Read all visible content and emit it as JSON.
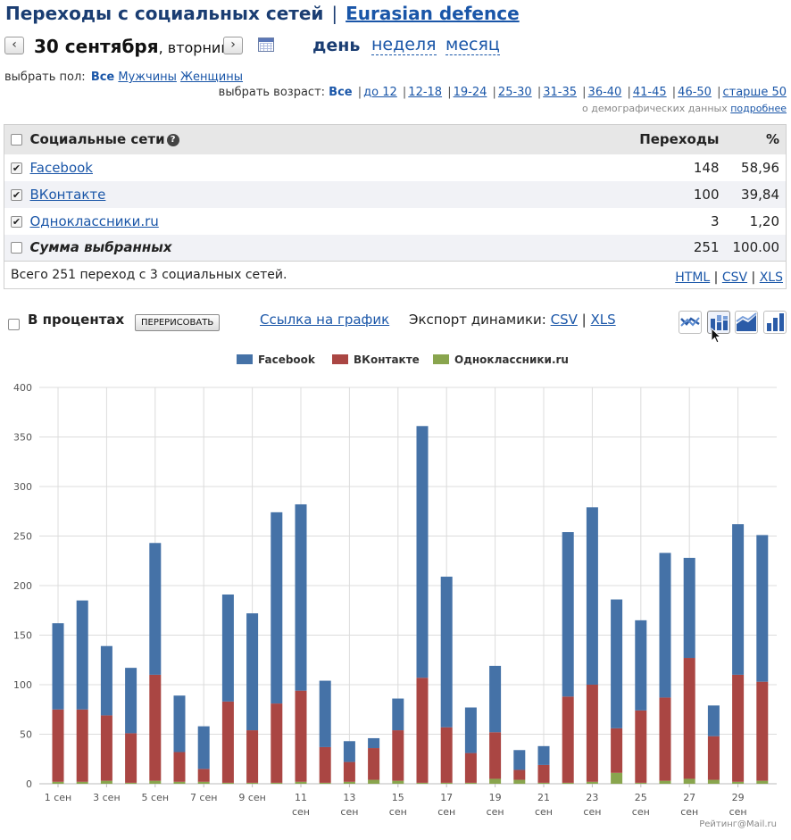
{
  "header": {
    "title": "Переходы с социальных сетей",
    "separator": "|",
    "site": "Eurasian defence"
  },
  "date_nav": {
    "prev": "‹",
    "next": "›",
    "date": "30 сентября",
    "weekday": ", вторник",
    "calendar_icon": "calendar-icon",
    "periods": {
      "day": "день",
      "week": "неделя",
      "month": "месяц"
    }
  },
  "filters": {
    "sex_label": "выбрать пол:",
    "sex_all": "Все",
    "sex_male": "Мужчины",
    "sex_female": "Женщины",
    "age_label": "выбрать возраст:",
    "age_all": "Все",
    "age_options": [
      "до 12",
      "12-18",
      "19-24",
      "25-30",
      "31-35",
      "36-40",
      "41-45",
      "46-50",
      "старше 50"
    ],
    "demo_note": "о демографических данных",
    "demo_link": "подробнее"
  },
  "table": {
    "col_name": "Социальные сети",
    "col_visits": "Переходы",
    "col_pct": "%",
    "help_icon": "?",
    "rows": [
      {
        "name": "Facebook",
        "visits": "148",
        "pct": "58,96",
        "checked": true
      },
      {
        "name": "ВКонтакте",
        "visits": "100",
        "pct": "39,84",
        "checked": true
      },
      {
        "name": "Одноклассники.ru",
        "visits": "3",
        "pct": "1,20",
        "checked": true
      }
    ],
    "total": {
      "label": "Сумма выбранных",
      "visits": "251",
      "pct": "100.00"
    },
    "summary": "Всего 251 переход с 3 социальных сетей.",
    "exports": [
      "HTML",
      "CSV",
      "XLS"
    ]
  },
  "controls": {
    "percent_label": "В процентах",
    "redraw_button": "ПЕРЕРИСОВАТЬ",
    "chart_link": "Ссылка на график",
    "export_label": "Экспорт динамики:",
    "export_csv": "CSV",
    "export_xls": "XLS",
    "chart_types": [
      "line-chart-icon",
      "stacked-bar-chart-icon",
      "area-chart-icon",
      "bar-chart-icon"
    ]
  },
  "colors": {
    "facebook": "#4572a7",
    "vkontakte": "#aa4643",
    "odnoklassniki": "#89a54e",
    "link": "#1a56a8",
    "title": "#1a3d72"
  },
  "chart_data": {
    "type": "bar",
    "stacked": true,
    "ylim": [
      0,
      400
    ],
    "yticks": [
      0,
      50,
      100,
      150,
      200,
      250,
      300,
      350,
      400
    ],
    "grid": true,
    "legend_position": "top-center",
    "categories": [
      "1 сен",
      "2 сен",
      "3 сен",
      "4 сен",
      "5 сен",
      "6 сен",
      "7 сен",
      "8 сен",
      "9 сен",
      "10 сен",
      "11 сен",
      "12 сен",
      "13 сен",
      "14 сен",
      "15 сен",
      "16 сен",
      "17 сен",
      "18 сен",
      "19 сен",
      "20 сен",
      "21 сен",
      "22 сен",
      "23 сен",
      "24 сен",
      "25 сен",
      "26 сен",
      "27 сен",
      "28 сен",
      "29 сен",
      "30 сен"
    ],
    "x_tick_labels": [
      {
        "index": 0,
        "lines": [
          "1 сен"
        ]
      },
      {
        "index": 2,
        "lines": [
          "3 сен"
        ]
      },
      {
        "index": 4,
        "lines": [
          "5 сен"
        ]
      },
      {
        "index": 6,
        "lines": [
          "7 сен"
        ]
      },
      {
        "index": 8,
        "lines": [
          "9 сен"
        ]
      },
      {
        "index": 10,
        "lines": [
          "11",
          "сен"
        ]
      },
      {
        "index": 12,
        "lines": [
          "13",
          "сен"
        ]
      },
      {
        "index": 14,
        "lines": [
          "15",
          "сен"
        ]
      },
      {
        "index": 16,
        "lines": [
          "17",
          "сен"
        ]
      },
      {
        "index": 18,
        "lines": [
          "19",
          "сен"
        ]
      },
      {
        "index": 20,
        "lines": [
          "21",
          "сен"
        ]
      },
      {
        "index": 22,
        "lines": [
          "23",
          "сен"
        ]
      },
      {
        "index": 24,
        "lines": [
          "25",
          "сен"
        ]
      },
      {
        "index": 26,
        "lines": [
          "27",
          "сен"
        ]
      },
      {
        "index": 28,
        "lines": [
          "29",
          "сен"
        ]
      }
    ],
    "series": [
      {
        "name": "Одноклассники.ru",
        "color": "#89a54e",
        "values": [
          2,
          2,
          3,
          1,
          3,
          2,
          2,
          1,
          1,
          1,
          2,
          1,
          2,
          4,
          3,
          1,
          1,
          1,
          5,
          4,
          1,
          1,
          2,
          11,
          1,
          3,
          5,
          4,
          2,
          3
        ]
      },
      {
        "name": "ВКонтакте",
        "color": "#aa4643",
        "values": [
          73,
          73,
          66,
          50,
          107,
          30,
          13,
          82,
          53,
          80,
          92,
          36,
          20,
          32,
          51,
          106,
          56,
          30,
          47,
          10,
          18,
          87,
          98,
          45,
          73,
          84,
          122,
          44,
          108,
          100
        ]
      },
      {
        "name": "Facebook",
        "color": "#4572a7",
        "values": [
          87,
          110,
          70,
          66,
          133,
          57,
          43,
          108,
          118,
          193,
          188,
          67,
          21,
          10,
          32,
          254,
          152,
          46,
          67,
          20,
          19,
          166,
          179,
          130,
          91,
          146,
          101,
          31,
          152,
          148
        ]
      }
    ]
  },
  "footer": {
    "credit": "Рейтинг@Mail.ru"
  }
}
